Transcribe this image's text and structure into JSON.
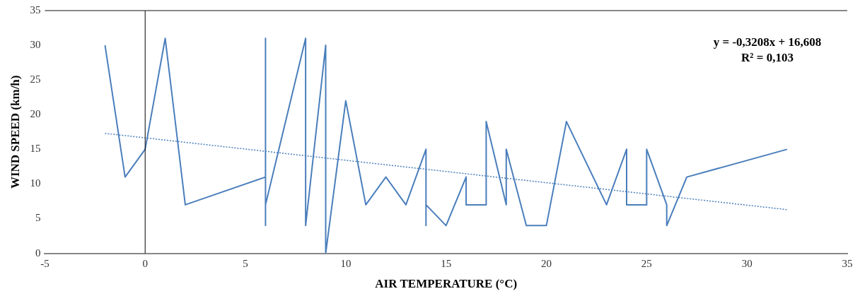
{
  "chart_data": {
    "type": "line",
    "xlabel": "AIR TEMPERATURE (°C)",
    "ylabel": "WIND SPEED (km/h)",
    "xlim": [
      -5,
      35
    ],
    "xticks": [
      -5,
      0,
      5,
      10,
      15,
      20,
      25,
      30,
      35
    ],
    "ylim": [
      0,
      35
    ],
    "yticks": [
      0,
      5,
      10,
      15,
      20,
      25,
      30,
      35
    ],
    "grid": false,
    "legend": false,
    "marker": "none",
    "series": [
      {
        "color": "#4a7ebb",
        "line_style": "solid",
        "x": [
          -2,
          -1,
          0,
          1,
          2,
          6,
          6,
          6,
          6,
          8,
          8,
          9,
          9,
          10,
          11,
          12,
          13,
          14,
          14,
          14,
          15,
          16,
          16,
          17,
          17,
          18,
          18,
          19,
          20,
          21,
          23,
          24,
          24,
          25,
          25,
          26,
          26,
          27,
          32
        ],
        "values": [
          30,
          11,
          15,
          31,
          7,
          11,
          31,
          4,
          7,
          31,
          4,
          30,
          0,
          22,
          7,
          11,
          7,
          15,
          4,
          7,
          4,
          11,
          7,
          7,
          19,
          7,
          15,
          4,
          4,
          19,
          7,
          15,
          7,
          7,
          15,
          7,
          4,
          11,
          15
        ]
      },
      {
        "color": "#4a7ebb",
        "line_style": "dotted",
        "x": [
          -2,
          32
        ],
        "values": [
          17.3,
          6.3
        ]
      }
    ],
    "ref_lines": [
      {
        "axis": "x",
        "value": 0,
        "color": "#000000",
        "line_style": "solid"
      }
    ],
    "annotations": [
      "y = -0,3208x + 16,608",
      "R² = 0,103"
    ]
  }
}
